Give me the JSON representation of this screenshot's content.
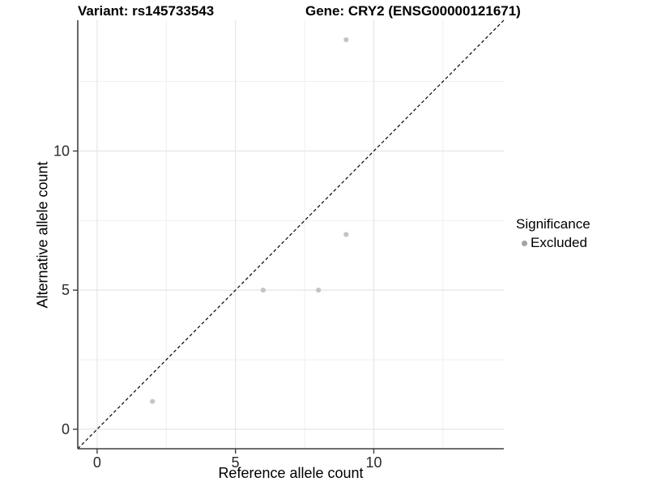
{
  "header": {
    "title_left": "Variant: rs145733543",
    "title_right": "Gene: CRY2 (ENSG00000121671)"
  },
  "axes": {
    "x_label": "Reference allele count",
    "y_label": "Alternative allele count"
  },
  "legend": {
    "title": "Significance",
    "items": [
      {
        "label": "Excluded",
        "marker": "dot-icon",
        "color": "#a3a3a3"
      }
    ]
  },
  "chart_data": {
    "type": "scatter",
    "title": "Variant: rs145733543 / Gene: CRY2 (ENSG00000121671)",
    "xlabel": "Reference allele count",
    "ylabel": "Alternative allele count",
    "xlim": [
      -0.7,
      14.7
    ],
    "ylim": [
      -0.7,
      14.7
    ],
    "x_ticks": [
      0,
      5,
      10
    ],
    "y_ticks": [
      0,
      5,
      10
    ],
    "x_minor_ticks": [
      2.5,
      7.5,
      12.5
    ],
    "y_minor_ticks": [
      2.5,
      7.5,
      12.5
    ],
    "grid": "major+minor",
    "legend_position": "right",
    "series": [
      {
        "name": "Excluded",
        "point_color": "#c4c4c4",
        "point_radius": 3.1,
        "points": [
          {
            "x": 2,
            "y": 1
          },
          {
            "x": 6,
            "y": 5
          },
          {
            "x": 8,
            "y": 5
          },
          {
            "x": 9,
            "y": 7
          },
          {
            "x": 9,
            "y": 14
          }
        ]
      }
    ],
    "reference_line": {
      "kind": "identity y=x",
      "style": "dashed",
      "color": "#000000",
      "from": [
        -0.7,
        -0.7
      ],
      "to": [
        14.7,
        14.7
      ]
    }
  },
  "colors": {
    "background": "#ffffff",
    "grid_major": "#e7e7e7",
    "grid_minor": "#efefef",
    "axis_line": "#3f3f3f",
    "tick_text": "#2b2b2b",
    "point": "#c4c4c4",
    "legend_marker": "#a3a3a3",
    "dashed_line": "#000000"
  }
}
